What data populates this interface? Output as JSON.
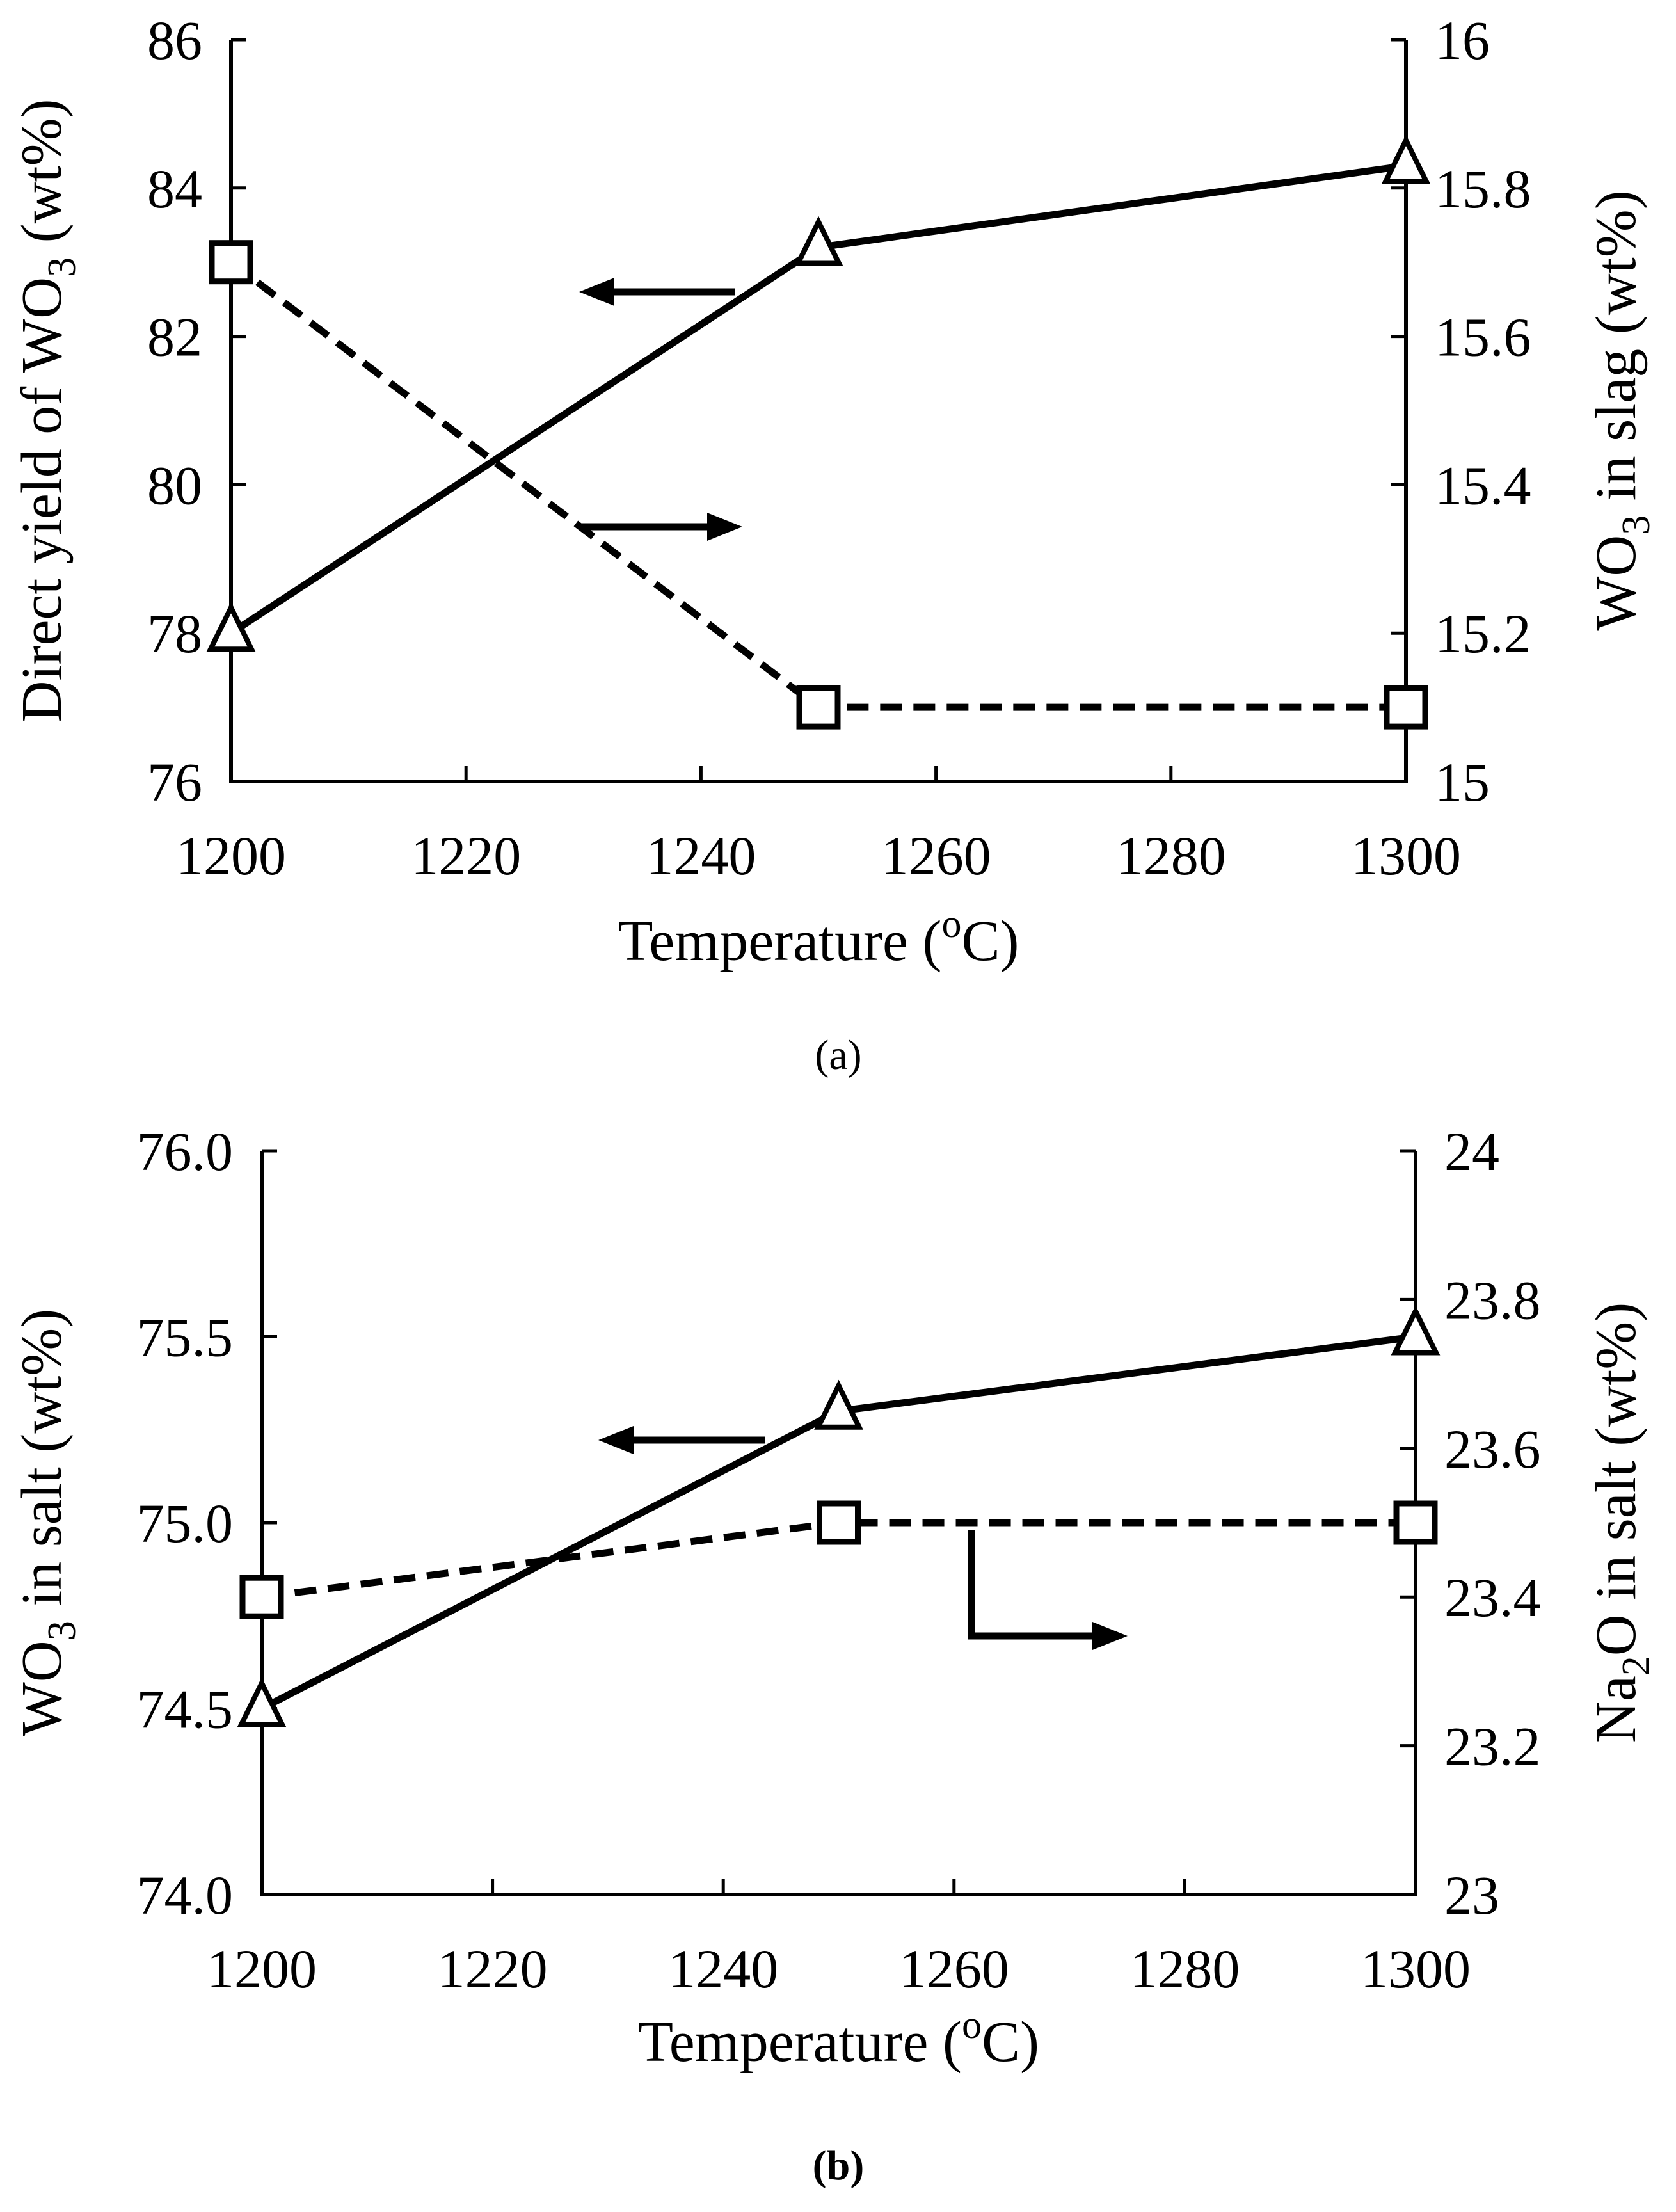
{
  "chart_data": [
    {
      "type": "line",
      "panel_label": "(a)",
      "x": [
        1200,
        1250,
        1300
      ],
      "xlabel": {
        "pre": "Temperature (",
        "sup": "o",
        "post": "C)"
      },
      "xlim": [
        1200,
        1300
      ],
      "xticks": [
        "1200",
        "1220",
        "1240",
        "1260",
        "1280",
        "1300"
      ],
      "ylabel_left": {
        "pre": "Direct yield of WO",
        "sub": "3",
        "post": " (wt%)"
      },
      "ylim_left": [
        76,
        86
      ],
      "yticks_left": [
        "76",
        "78",
        "80",
        "82",
        "84",
        "86"
      ],
      "ylabel_right": {
        "pre": "WO",
        "sub": "3",
        "post": " in slag (wt%)"
      },
      "ylim_right": [
        15,
        16
      ],
      "yticks_right": [
        "15",
        "15.2",
        "15.4",
        "15.6",
        "15.8",
        "16"
      ],
      "grid": false,
      "series": [
        {
          "axis": "left",
          "marker": "triangle",
          "line": "solid",
          "values": [
            78.0,
            83.2,
            84.3
          ]
        },
        {
          "axis": "right",
          "marker": "square",
          "line": "dashed",
          "values": [
            15.7,
            15.1,
            15.1
          ]
        }
      ],
      "annotations": [
        {
          "type": "arrow",
          "points_to": "left-axis"
        },
        {
          "type": "arrow",
          "points_to": "right-axis"
        }
      ]
    },
    {
      "type": "line",
      "panel_label": "(b)",
      "x": [
        1200,
        1250,
        1300
      ],
      "xlabel": {
        "pre": "Temperature (",
        "sup": "o",
        "post": "C)"
      },
      "xlim": [
        1200,
        1300
      ],
      "xticks": [
        "1200",
        "1220",
        "1240",
        "1260",
        "1280",
        "1300"
      ],
      "ylabel_left": {
        "pre": "WO",
        "sub": "3",
        "post": " in salt (wt%)"
      },
      "ylim_left": [
        74.0,
        76.0
      ],
      "yticks_left": [
        "74.0",
        "74.5",
        "75.0",
        "75.5",
        "76.0"
      ],
      "ylabel_right": {
        "pre": "Na",
        "sub": "2",
        "post": "O in salt (wt%)"
      },
      "ylim_right": [
        23,
        24
      ],
      "yticks_right": [
        "23",
        "23.2",
        "23.4",
        "23.6",
        "23.8",
        "24"
      ],
      "grid": false,
      "series": [
        {
          "axis": "left",
          "marker": "triangle",
          "line": "solid",
          "values": [
            74.5,
            75.3,
            75.5
          ]
        },
        {
          "axis": "right",
          "marker": "square",
          "line": "dashed",
          "values": [
            23.4,
            23.5,
            23.5
          ]
        }
      ],
      "annotations": [
        {
          "type": "arrow",
          "points_to": "left-axis"
        },
        {
          "type": "arrow",
          "points_to": "right-axis"
        }
      ]
    }
  ]
}
